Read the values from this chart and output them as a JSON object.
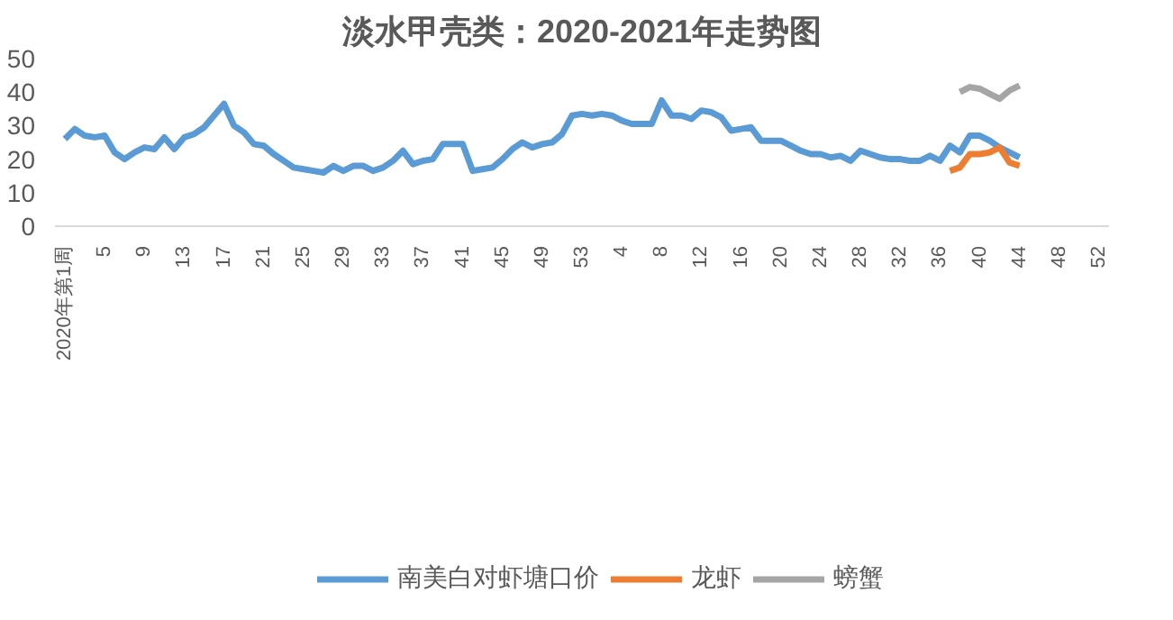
{
  "chart_data": {
    "type": "line",
    "title": "淡水甲壳类：2020-2021年走势图",
    "categories": [
      "2020年第1周",
      null,
      null,
      null,
      "5",
      null,
      null,
      null,
      "9",
      null,
      null,
      null,
      "13",
      null,
      null,
      null,
      "17",
      null,
      null,
      null,
      "21",
      null,
      null,
      null,
      "25",
      null,
      null,
      null,
      "29",
      null,
      null,
      null,
      "33",
      null,
      null,
      null,
      "37",
      null,
      null,
      null,
      "41",
      null,
      null,
      null,
      "45",
      null,
      null,
      null,
      "49",
      null,
      null,
      null,
      "53",
      null,
      null,
      null,
      "4",
      null,
      null,
      null,
      "8",
      null,
      null,
      null,
      "12",
      null,
      null,
      null,
      "16",
      null,
      null,
      null,
      "20",
      null,
      null,
      null,
      "24",
      null,
      null,
      null,
      "28",
      null,
      null,
      null,
      "32",
      null,
      null,
      null,
      "36",
      null,
      null,
      null,
      "40",
      null,
      null,
      null,
      "44",
      null,
      null,
      null,
      "48",
      null,
      null,
      null,
      "52"
    ],
    "series": [
      {
        "name": "南美白对虾塘口价",
        "color": "#5b9bd5",
        "values": [
          26,
          29,
          27,
          26.5,
          27,
          22,
          20,
          22,
          23.5,
          23,
          26.5,
          23,
          26.5,
          27.5,
          29.5,
          33,
          36.5,
          30,
          28,
          24.5,
          24,
          21.5,
          19.5,
          17.5,
          17,
          16.5,
          16,
          18,
          16.5,
          18,
          18,
          16.5,
          17.5,
          19.5,
          22.5,
          18.5,
          19.5,
          20,
          24.5,
          24.5,
          24.5,
          16.5,
          17,
          17.5,
          20,
          23,
          25,
          23.5,
          24.5,
          25,
          27.5,
          33,
          33.5,
          33,
          33.5,
          33,
          31.5,
          30.5,
          30.5,
          30.5,
          37.5,
          33,
          33,
          32,
          34.5,
          34,
          32.5,
          28.5,
          29,
          29.5,
          25.5,
          25.5,
          25.5,
          24,
          22.5,
          21.5,
          21.5,
          20.5,
          21,
          19.5,
          22.5,
          21.5,
          20.5,
          20,
          20,
          19.5,
          19.5,
          21,
          19.5,
          24,
          22,
          27,
          27,
          25.5,
          23.5,
          22,
          20.5,
          null,
          null,
          null,
          null,
          null,
          null,
          null,
          null
        ]
      },
      {
        "name": "龙虾",
        "color": "#ed7d31",
        "values": [
          null,
          null,
          null,
          null,
          null,
          null,
          null,
          null,
          null,
          null,
          null,
          null,
          null,
          null,
          null,
          null,
          null,
          null,
          null,
          null,
          null,
          null,
          null,
          null,
          null,
          null,
          null,
          null,
          null,
          null,
          null,
          null,
          null,
          null,
          null,
          null,
          null,
          null,
          null,
          null,
          null,
          null,
          null,
          null,
          null,
          null,
          null,
          null,
          null,
          null,
          null,
          null,
          null,
          null,
          null,
          null,
          null,
          null,
          null,
          null,
          null,
          null,
          null,
          null,
          null,
          null,
          null,
          null,
          null,
          null,
          null,
          null,
          null,
          null,
          null,
          null,
          null,
          null,
          null,
          null,
          null,
          null,
          null,
          null,
          null,
          null,
          null,
          null,
          null,
          16.5,
          17.5,
          21.5,
          21.5,
          22,
          23.5,
          19,
          18,
          null,
          null,
          null,
          null,
          null,
          null,
          null,
          null
        ]
      },
      {
        "name": "螃蟹",
        "color": "#a5a5a5",
        "values": [
          null,
          null,
          null,
          null,
          null,
          null,
          null,
          null,
          null,
          null,
          null,
          null,
          null,
          null,
          null,
          null,
          null,
          null,
          null,
          null,
          null,
          null,
          null,
          null,
          null,
          null,
          null,
          null,
          null,
          null,
          null,
          null,
          null,
          null,
          null,
          null,
          null,
          null,
          null,
          null,
          null,
          null,
          null,
          null,
          null,
          null,
          null,
          null,
          null,
          null,
          null,
          null,
          null,
          null,
          null,
          null,
          null,
          null,
          null,
          null,
          null,
          null,
          null,
          null,
          null,
          null,
          null,
          null,
          null,
          null,
          null,
          null,
          null,
          null,
          null,
          null,
          null,
          null,
          null,
          null,
          null,
          null,
          null,
          null,
          null,
          null,
          null,
          null,
          null,
          null,
          40,
          41.5,
          41,
          39.5,
          38,
          40.5,
          42,
          null,
          null,
          null,
          null,
          null,
          null,
          null,
          null
        ]
      }
    ],
    "ylim": [
      0,
      50
    ],
    "yticks": [
      0,
      10,
      20,
      30,
      40,
      50
    ],
    "grid": false,
    "legend": "bottom",
    "marker": "none",
    "line_style": "solid"
  }
}
